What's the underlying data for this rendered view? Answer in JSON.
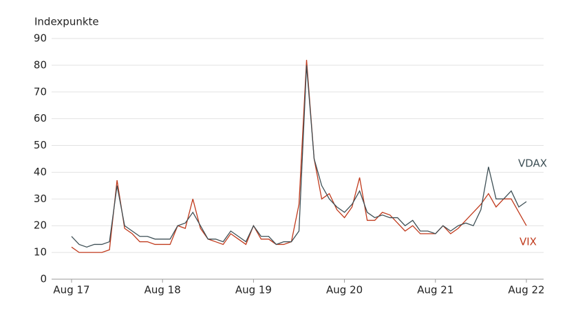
{
  "chart_data": {
    "type": "line",
    "title": "Indexpunkte",
    "x": [
      "Aug 17",
      "Sep 17",
      "Oct 17",
      "Nov 17",
      "Dec 17",
      "Jan 18",
      "Feb 18",
      "Mar 18",
      "Apr 18",
      "May 18",
      "Jun 18",
      "Jul 18",
      "Aug 18",
      "Sep 18",
      "Oct 18",
      "Nov 18",
      "Dec 18",
      "Jan 19",
      "Feb 19",
      "Mar 19",
      "Apr 19",
      "May 19",
      "Jun 19",
      "Jul 19",
      "Aug 19",
      "Sep 19",
      "Oct 19",
      "Nov 19",
      "Dec 19",
      "Jan 20",
      "Feb 20",
      "Mar 20",
      "Apr 20",
      "May 20",
      "Jun 20",
      "Jul 20",
      "Aug 20",
      "Sep 20",
      "Oct 20",
      "Nov 20",
      "Dec 20",
      "Jan 21",
      "Feb 21",
      "Mar 21",
      "Apr 21",
      "May 21",
      "Jun 21",
      "Jul 21",
      "Aug 21",
      "Sep 21",
      "Oct 21",
      "Nov 21",
      "Dec 21",
      "Jan 22",
      "Feb 22",
      "Mar 22",
      "Apr 22",
      "May 22",
      "Jun 22",
      "Jul 22",
      "Aug 22"
    ],
    "xticks": [
      "Aug 17",
      "Aug 18",
      "Aug 19",
      "Aug 20",
      "Aug 21",
      "Aug 22"
    ],
    "series": [
      {
        "name": "VDAX",
        "color": "#3d4f55",
        "values": [
          16,
          13,
          12,
          13,
          13,
          14,
          35,
          20,
          18,
          16,
          16,
          15,
          15,
          15,
          20,
          21,
          25,
          20,
          15,
          15,
          14,
          18,
          16,
          14,
          20,
          16,
          16,
          13,
          14,
          14,
          18,
          80,
          45,
          35,
          30,
          27,
          25,
          28,
          33,
          25,
          23,
          24,
          23,
          23,
          20,
          22,
          18,
          18,
          17,
          20,
          18,
          20,
          21,
          20,
          26,
          42,
          30,
          30,
          33,
          27,
          29
        ]
      },
      {
        "name": "VIX",
        "color": "#c0391b",
        "values": [
          12,
          10,
          10,
          10,
          10,
          11,
          37,
          19,
          17,
          14,
          14,
          13,
          13,
          13,
          20,
          19,
          30,
          19,
          15,
          14,
          13,
          17,
          15,
          13,
          20,
          15,
          15,
          13,
          13,
          14,
          28,
          82,
          45,
          30,
          32,
          26,
          23,
          27,
          38,
          22,
          22,
          25,
          24,
          21,
          18,
          20,
          17,
          17,
          17,
          20,
          17,
          19,
          22,
          25,
          28,
          32,
          27,
          30,
          30,
          25,
          20
        ]
      }
    ],
    "ylim": [
      0,
      90
    ],
    "yticks": [
      0,
      10,
      20,
      30,
      40,
      50,
      60,
      70,
      80,
      90
    ],
    "grid": true
  }
}
